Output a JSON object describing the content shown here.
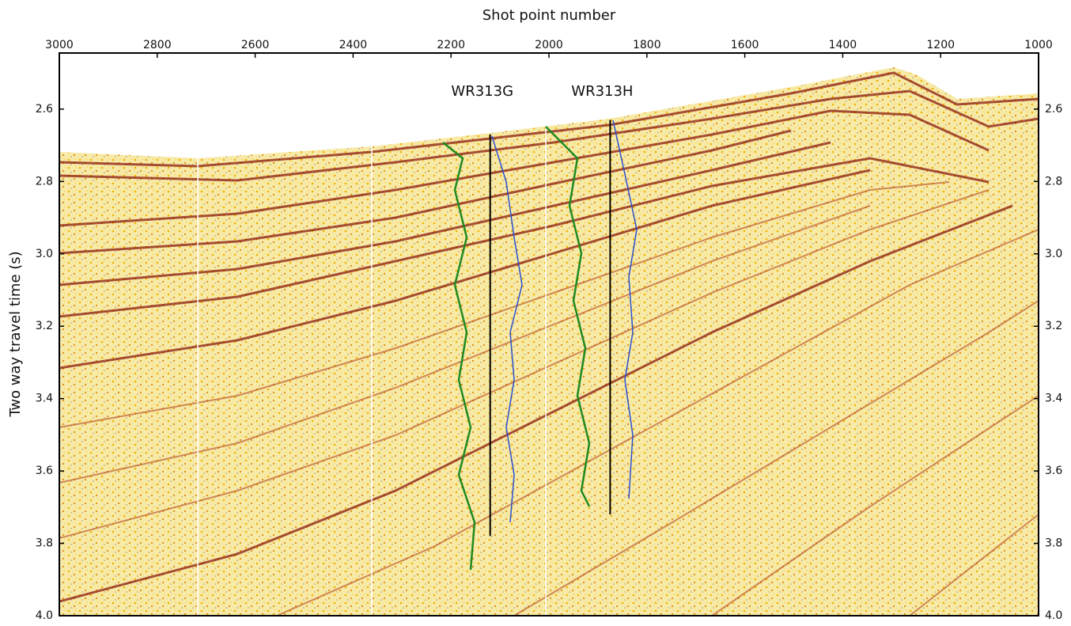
{
  "chart_data": {
    "type": "seismic-section",
    "title": "Shot point number",
    "y_label": "Two way travel time (s)",
    "xlim": [
      3000,
      1000
    ],
    "xticks": [
      3000,
      2800,
      2600,
      2400,
      2200,
      2000,
      1800,
      1600,
      1400,
      1200,
      1000
    ],
    "ylim": [
      2.445,
      4.0
    ],
    "y_inverted": true,
    "yticks": [
      2.6,
      2.8,
      {
        "value": 3,
        "label": "3.0"
      },
      3.2,
      3.4,
      3.6,
      3.8,
      {
        "value": 4,
        "label": "4.0"
      }
    ],
    "wells": [
      {
        "label": "WR313G",
        "shot": 2120,
        "top": 2.67,
        "bottom": 3.78
      },
      {
        "label": "WR313H",
        "shot": 1875,
        "top": 2.63,
        "bottom": 3.72
      }
    ]
  }
}
